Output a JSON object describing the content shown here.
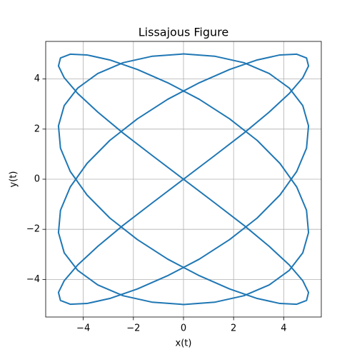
{
  "chart_data": {
    "type": "line",
    "title": "Lissajous Figure",
    "xlabel": "x(t)",
    "ylabel": "y(t)",
    "color": "#1f77b4",
    "grid": true,
    "xlim": [
      -5.5,
      5.5
    ],
    "ylim": [
      -5.5,
      5.5
    ],
    "xticks": [
      {
        "value": -4,
        "label": "−4"
      },
      {
        "value": -2,
        "label": "−2"
      },
      0,
      2,
      4
    ],
    "yticks": [
      {
        "value": -4,
        "label": "−4"
      },
      {
        "value": -2,
        "label": "−2"
      },
      0,
      2,
      4
    ],
    "x": [
      0,
      1.24,
      2.41,
      3.42,
      4.22,
      4.76,
      4.99,
      4.91,
      4.52,
      3.85,
      2.94,
      1.84,
      0.63,
      -0.63,
      -1.84,
      -2.94,
      -3.85,
      -4.52,
      -4.91,
      -4.99,
      -4.76,
      -4.22,
      -3.42,
      -2.41,
      -1.24,
      0,
      1.24,
      2.41,
      3.42,
      4.22,
      4.76,
      4.99,
      4.91,
      4.52,
      3.85,
      2.94,
      1.84,
      0.63,
      -0.63,
      -1.84,
      -2.94,
      -3.85,
      -4.52,
      -4.91,
      -4.99,
      -4.76,
      -4.22,
      -3.42,
      -2.41,
      -1.24,
      0,
      1.24,
      2.41,
      3.42,
      4.22,
      4.76,
      4.99,
      4.91,
      4.52,
      3.85,
      2.94,
      1.84,
      0.63,
      -0.63,
      -1.84,
      -2.94,
      -3.85,
      -4.52,
      -4.91,
      -4.99,
      -4.76,
      -4.22,
      -3.42,
      -2.41,
      -1.24,
      0,
      1.24,
      2.41,
      3.42,
      4.22,
      4.76,
      4.99,
      4.91,
      4.52,
      3.85,
      2.94,
      1.84,
      0.63,
      -0.63,
      -1.84,
      -2.94,
      -3.85,
      -4.52,
      -4.91,
      -4.99,
      -4.76,
      -4.22,
      -3.42,
      -2.41,
      -1.24,
      0
    ],
    "y": [
      0,
      0.94,
      1.84,
      2.68,
      3.42,
      4.05,
      4.52,
      4.84,
      4.99,
      4.96,
      4.76,
      4.38,
      3.85,
      3.19,
      2.41,
      1.55,
      0.63,
      -0.31,
      -1.24,
      -2.13,
      -2.94,
      -3.64,
      -4.22,
      -4.65,
      -4.91,
      -5,
      -4.91,
      -4.65,
      -4.22,
      -3.64,
      -2.94,
      -2.13,
      -1.24,
      -0.31,
      0.63,
      1.55,
      2.41,
      3.19,
      3.85,
      4.38,
      4.76,
      4.96,
      4.99,
      4.84,
      4.52,
      4.05,
      3.42,
      2.68,
      1.84,
      0.94,
      0,
      -0.94,
      -1.84,
      -2.68,
      -3.42,
      -4.05,
      -4.52,
      -4.84,
      -4.99,
      -4.96,
      -4.76,
      -4.38,
      -3.85,
      -3.19,
      -2.41,
      -1.55,
      -0.63,
      0.31,
      1.24,
      2.13,
      2.94,
      3.64,
      4.22,
      4.65,
      4.91,
      5,
      4.91,
      4.65,
      4.22,
      3.64,
      2.94,
      2.13,
      1.24,
      0.31,
      -0.63,
      -1.55,
      -2.41,
      -3.19,
      -3.85,
      -4.38,
      -4.76,
      -4.96,
      -4.99,
      -4.84,
      -4.52,
      -4.05,
      -3.42,
      -2.68,
      -1.84,
      -0.94,
      0
    ]
  }
}
